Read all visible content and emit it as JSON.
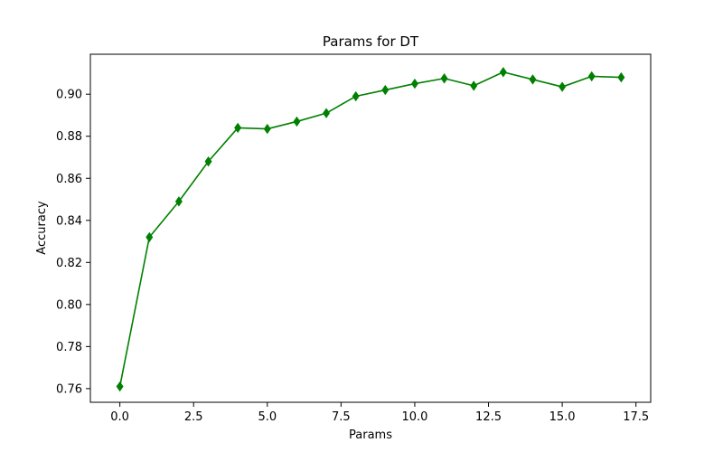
{
  "chart_data": {
    "type": "line",
    "title": "Params for DT",
    "xlabel": "Params",
    "ylabel": "Accuracy",
    "xlim": [
      -1.0,
      18.0
    ],
    "ylim": [
      0.7535,
      0.919
    ],
    "xticks": [
      0.0,
      2.5,
      5.0,
      7.5,
      10.0,
      12.5,
      15.0,
      17.5
    ],
    "xtick_labels": [
      "0.0",
      "2.5",
      "5.0",
      "7.5",
      "10.0",
      "12.5",
      "15.0",
      "17.5"
    ],
    "yticks": [
      0.76,
      0.78,
      0.8,
      0.82,
      0.84,
      0.86,
      0.88,
      0.9
    ],
    "ytick_labels": [
      "0.76",
      "0.78",
      "0.80",
      "0.82",
      "0.84",
      "0.86",
      "0.88",
      "0.90"
    ],
    "grid": false,
    "legend": "none",
    "series": [
      {
        "color": "#008000",
        "marker": "diamond",
        "x": [
          0,
          1,
          2,
          3,
          4,
          5,
          6,
          7,
          8,
          9,
          10,
          11,
          12,
          13,
          14,
          15,
          16,
          17
        ],
        "y": [
          0.761,
          0.832,
          0.849,
          0.868,
          0.884,
          0.8835,
          0.887,
          0.891,
          0.899,
          0.902,
          0.905,
          0.9075,
          0.904,
          0.9105,
          0.907,
          0.9035,
          0.9085,
          0.908
        ]
      }
    ]
  }
}
